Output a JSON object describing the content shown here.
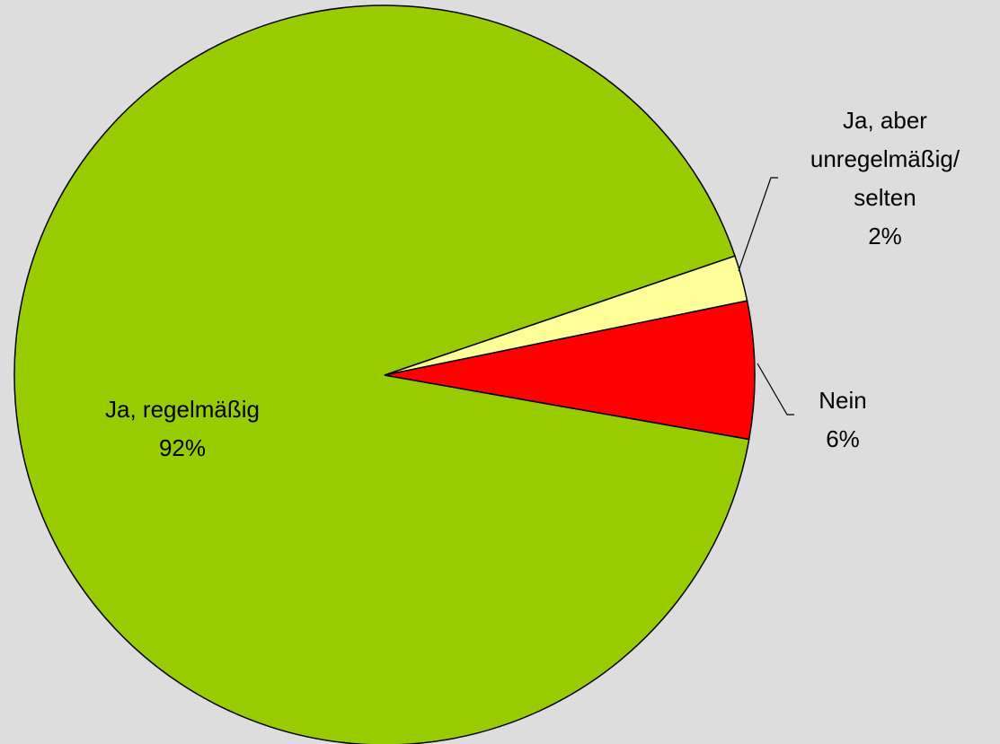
{
  "chart_data": {
    "type": "pie",
    "categories": [
      "Ja, regelmäßig",
      "Ja, aber\nunregelmäßig/\nselten",
      "Nein"
    ],
    "values": [
      92,
      2,
      6
    ],
    "value_labels": [
      "92%",
      "2%",
      "6%"
    ],
    "colors": [
      "#99cc00",
      "#ffff99",
      "#ff0000"
    ]
  }
}
